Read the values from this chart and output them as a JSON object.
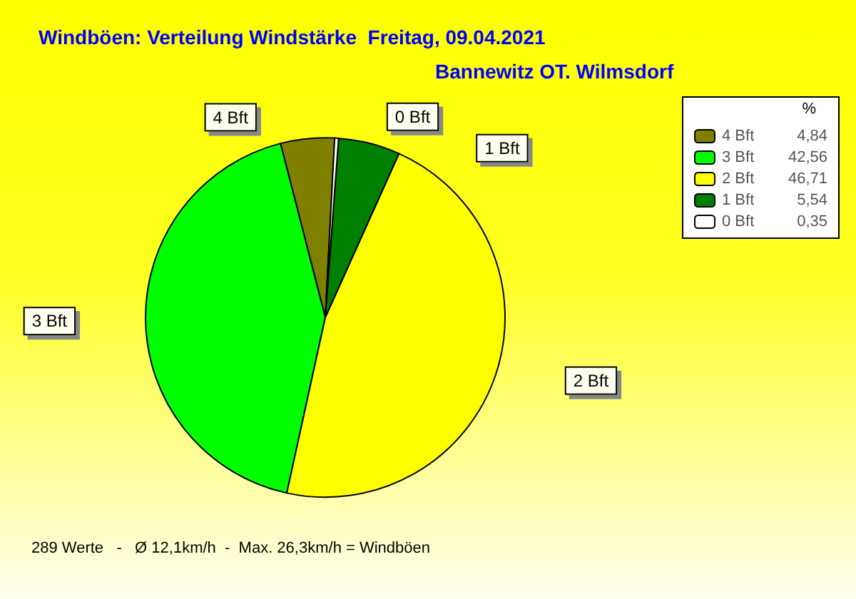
{
  "chart_data": {
    "type": "pie",
    "title": "Windböen: Verteilung Windstärke  Freitag, 09.04.2021",
    "subtitle": "Bannewitz OT. Wilmsdorf",
    "categories": [
      "4 Bft",
      "3 Bft",
      "2 Bft",
      "1 Bft",
      "0 Bft"
    ],
    "values": [
      4.84,
      42.56,
      46.71,
      5.54,
      0.35
    ],
    "colors": [
      "#808000",
      "#00ff00",
      "#ffff00",
      "#008000",
      "#ffffff"
    ],
    "value_labels": [
      "4,84",
      "42,56",
      "46,71",
      "5,54",
      "0,35"
    ],
    "legend": "top right",
    "legend_title": "%",
    "annotations": [
      "289 Werte   -   Ø 12,1km/h  -  Max. 26,3km/h = Windböen"
    ]
  }
}
